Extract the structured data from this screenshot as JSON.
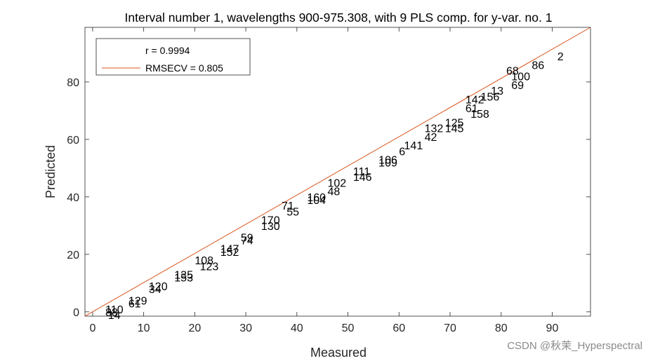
{
  "chart_data": {
    "type": "scatter",
    "title": "Interval number 1, wavelengths 900-975.308, with 9 PLS comp. for y-var. no. 1",
    "xlabel": "Measured",
    "ylabel": "Predicted",
    "xlim": [
      -1.5,
      97.5
    ],
    "ylim": [
      -1.5,
      99
    ],
    "xticks": [
      0,
      10,
      20,
      30,
      40,
      50,
      60,
      70,
      80,
      90
    ],
    "yticks": [
      0,
      20,
      40,
      60,
      80
    ],
    "grid": false,
    "legend": {
      "position": "top-left",
      "stats": [
        "r = 0.9994",
        "RMSECV = 0.805"
      ]
    },
    "fit_line": {
      "from": [
        -1.5,
        -1.5
      ],
      "to": [
        97.5,
        99
      ],
      "color": "#d95319"
    },
    "points": [
      {
        "label": "2",
        "x": 91,
        "y": 89
      },
      {
        "label": "86",
        "x": 86,
        "y": 86
      },
      {
        "label": "68",
        "x": 81,
        "y": 84
      },
      {
        "label": "100",
        "x": 82,
        "y": 82
      },
      {
        "label": "69",
        "x": 82,
        "y": 79
      },
      {
        "label": "13",
        "x": 78,
        "y": 77
      },
      {
        "label": "156",
        "x": 76,
        "y": 75
      },
      {
        "label": "142",
        "x": 73,
        "y": 74
      },
      {
        "label": "61",
        "x": 73,
        "y": 71
      },
      {
        "label": "158",
        "x": 74,
        "y": 69
      },
      {
        "label": "125",
        "x": 69,
        "y": 66
      },
      {
        "label": "145",
        "x": 69,
        "y": 64
      },
      {
        "label": "132",
        "x": 65,
        "y": 64
      },
      {
        "label": "42",
        "x": 65,
        "y": 61
      },
      {
        "label": "141",
        "x": 61,
        "y": 58
      },
      {
        "label": "6",
        "x": 60,
        "y": 56
      },
      {
        "label": "106",
        "x": 56,
        "y": 53
      },
      {
        "label": "109",
        "x": 56,
        "y": 52
      },
      {
        "label": "111",
        "x": 51,
        "y": 49
      },
      {
        "label": "146",
        "x": 51,
        "y": 47
      },
      {
        "label": "102",
        "x": 46,
        "y": 45
      },
      {
        "label": "48",
        "x": 46,
        "y": 42
      },
      {
        "label": "160",
        "x": 42,
        "y": 40
      },
      {
        "label": "104",
        "x": 42,
        "y": 39
      },
      {
        "label": "71",
        "x": 37,
        "y": 37
      },
      {
        "label": "55",
        "x": 38,
        "y": 35
      },
      {
        "label": "170",
        "x": 33,
        "y": 32
      },
      {
        "label": "130",
        "x": 33,
        "y": 30
      },
      {
        "label": "59",
        "x": 29,
        "y": 26
      },
      {
        "label": "74",
        "x": 29,
        "y": 25
      },
      {
        "label": "147",
        "x": 25,
        "y": 22
      },
      {
        "label": "152",
        "x": 25,
        "y": 21
      },
      {
        "label": "108",
        "x": 20,
        "y": 18
      },
      {
        "label": "123",
        "x": 21,
        "y": 16
      },
      {
        "label": "135",
        "x": 16,
        "y": 13
      },
      {
        "label": "153",
        "x": 16,
        "y": 12
      },
      {
        "label": "120",
        "x": 11,
        "y": 9
      },
      {
        "label": "34",
        "x": 11,
        "y": 8
      },
      {
        "label": "129",
        "x": 7,
        "y": 4
      },
      {
        "label": "61",
        "x": 7,
        "y": 3
      },
      {
        "label": "110",
        "x": 2.5,
        "y": 1
      },
      {
        "label": "88",
        "x": 2.5,
        "y": 0
      },
      {
        "label": "14",
        "x": 3,
        "y": -1
      }
    ]
  }
}
